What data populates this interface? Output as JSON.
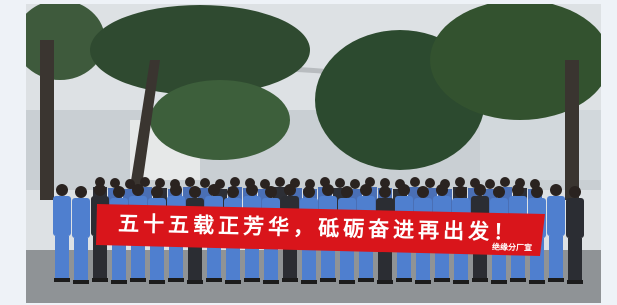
{
  "banner": {
    "slogan": "五十五载正芳华，砥砺奋进再出发！",
    "signature": "绝缘分厂宣"
  }
}
